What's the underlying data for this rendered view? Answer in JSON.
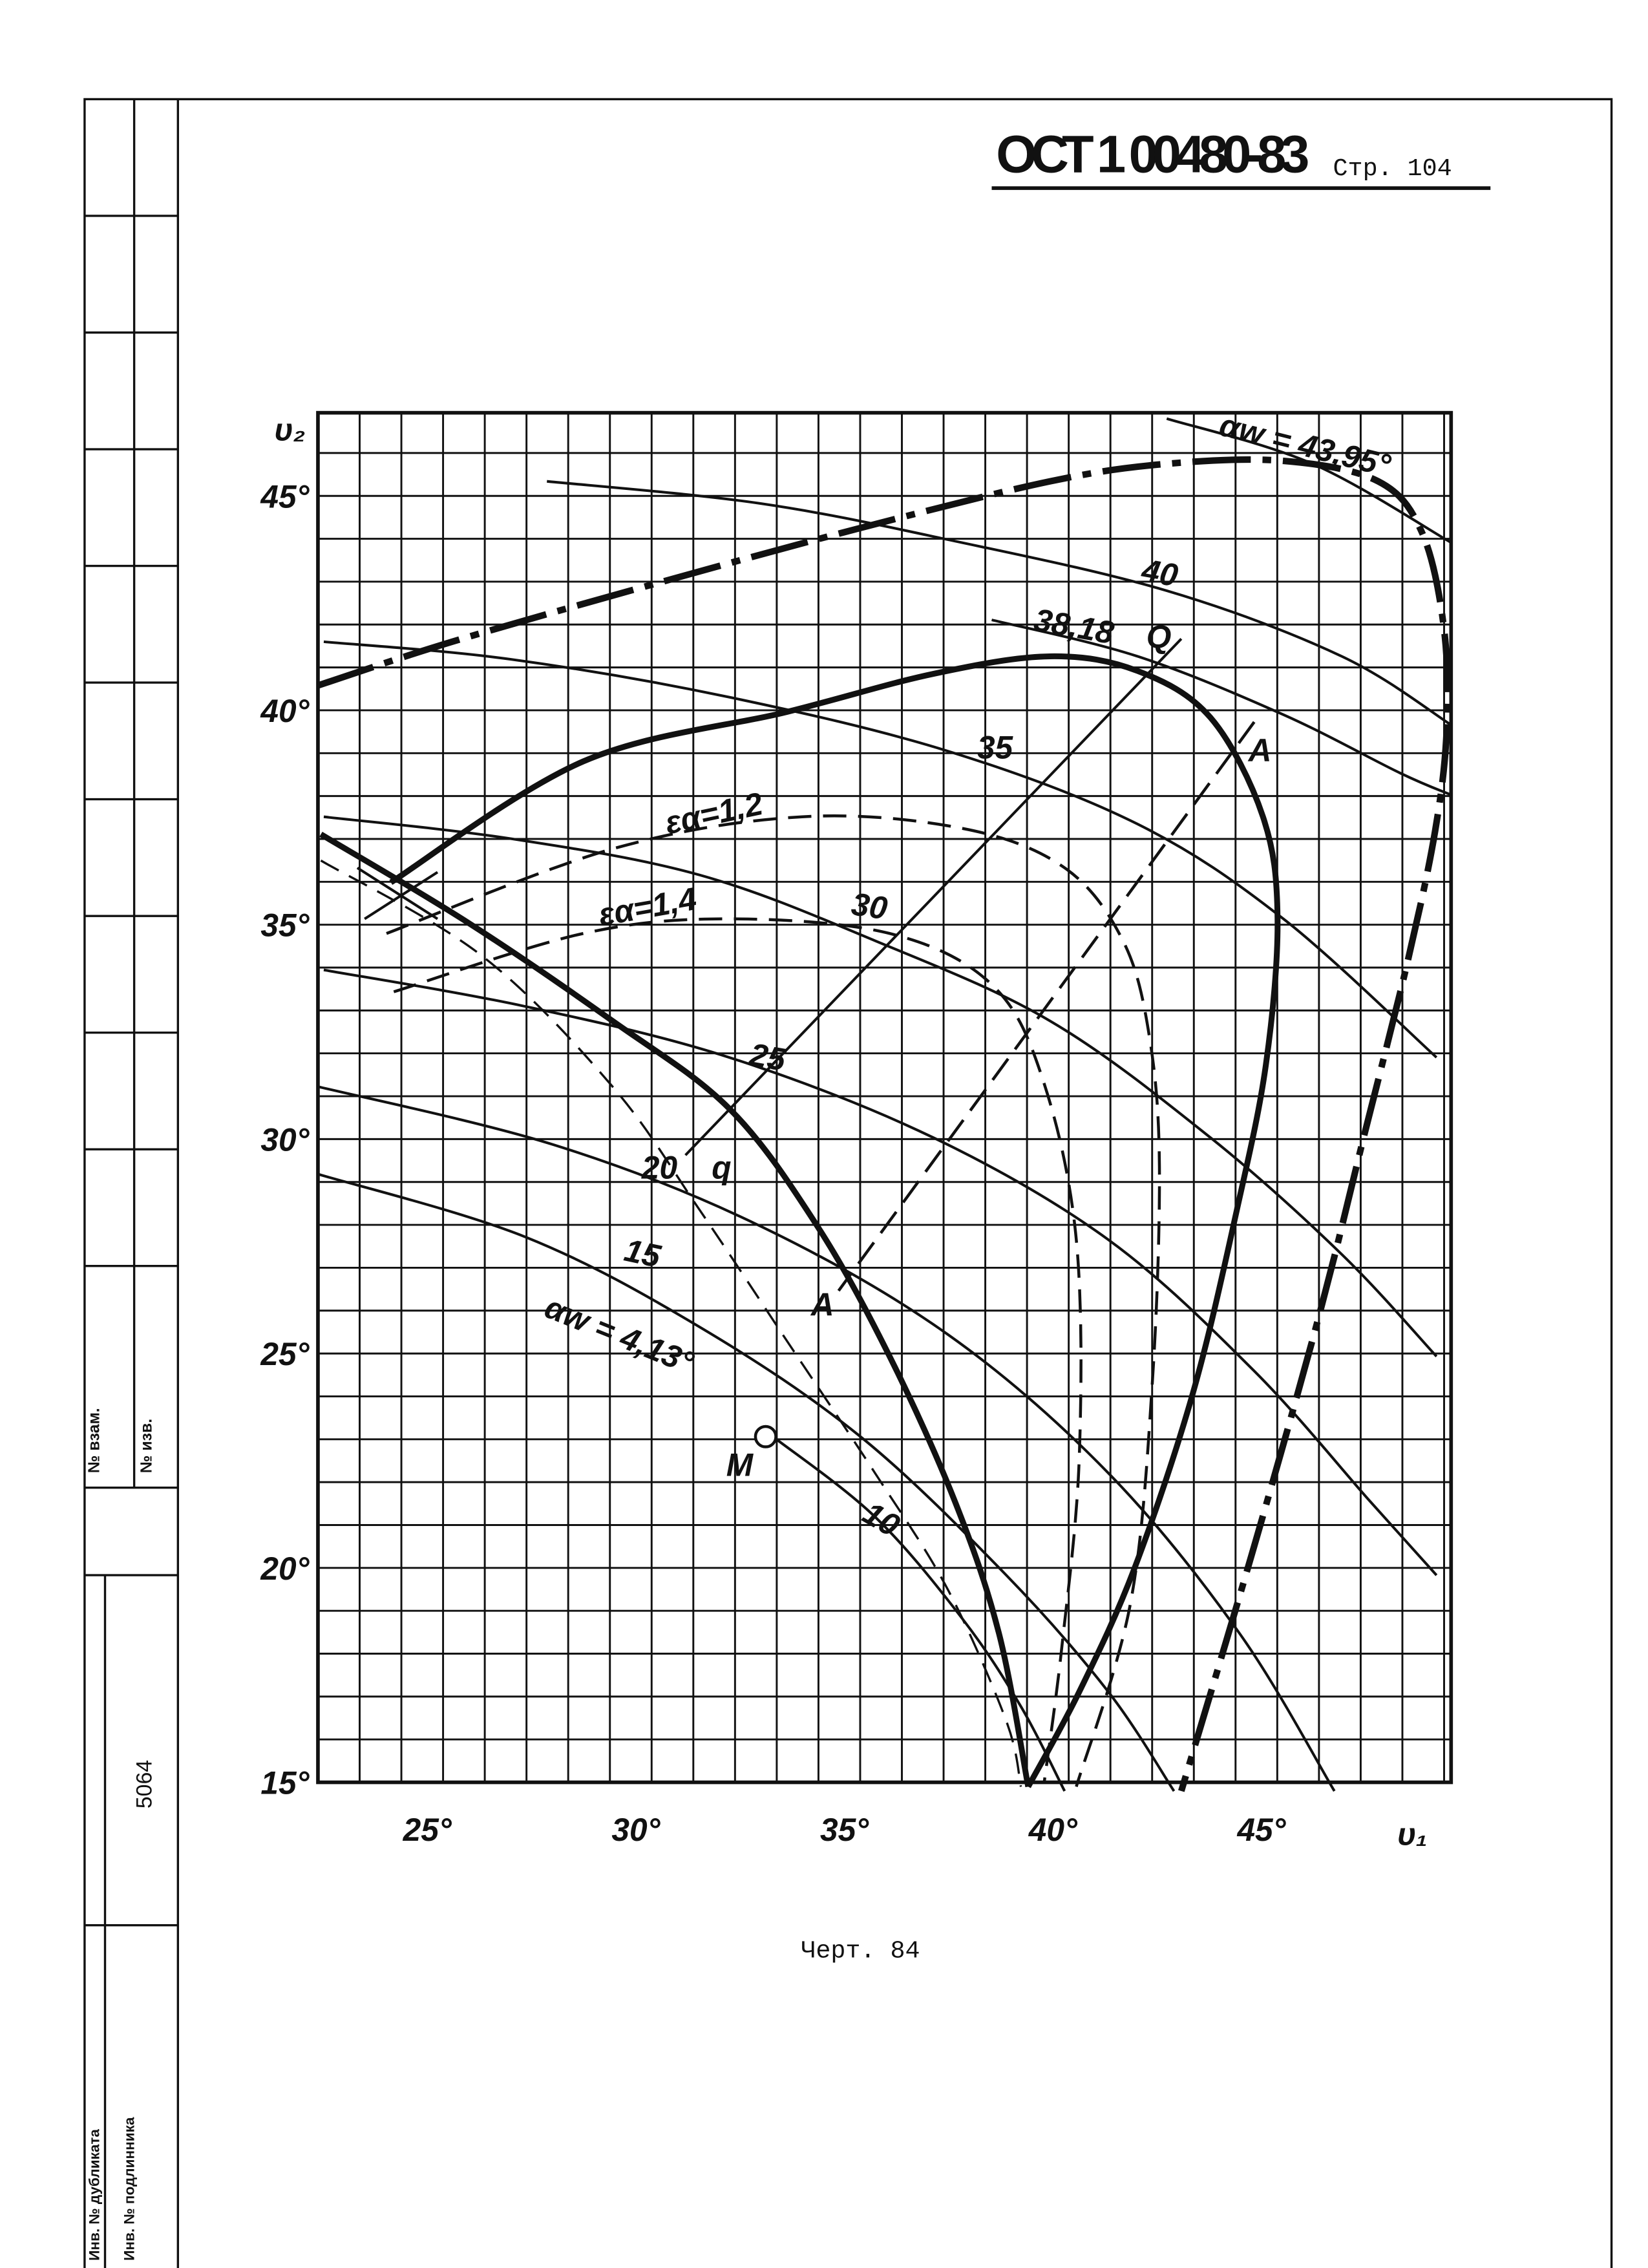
{
  "header": {
    "code": "ОСТ 1 00480-83",
    "page": "Стр. 104"
  },
  "chart": {
    "y_label": "υ₂",
    "x_label": "υ₁",
    "yticks": [
      "15°",
      "20°",
      "25°",
      "30°",
      "35°",
      "40°",
      "45°"
    ],
    "xticks": [
      "25°",
      "30°",
      "35°",
      "40°",
      "45°"
    ],
    "curve_labels": [
      "αw = 43,95°",
      "40",
      "38,18",
      "Q",
      "35",
      "εα=1,2",
      "εα=1,4",
      "30",
      "25",
      "20",
      "q",
      "15",
      "αw = 4,13°",
      "A",
      "A",
      "M",
      "10"
    ]
  },
  "caption": "Черт. 84",
  "stamps": {
    "replace": "№ взам.",
    "change": "№ изв.",
    "number": "5064",
    "duplicate": "Инв. № дубликата",
    "original": "Инв. № подлинника"
  }
}
